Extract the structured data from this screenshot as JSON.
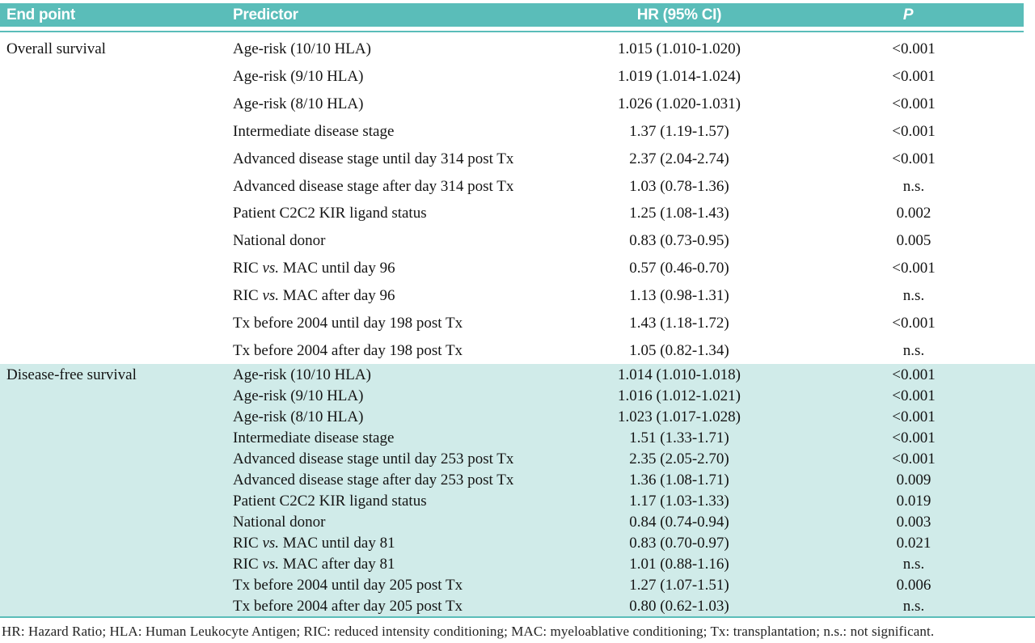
{
  "colors": {
    "header_teal": "#5abdb9",
    "section_teal": "#d0ebe9",
    "text": "#141414"
  },
  "table": {
    "columns": {
      "end_point": "End point",
      "predictor": "Predictor",
      "hr": "HR (95% CI)",
      "p": "P"
    },
    "sections": [
      {
        "end_point": "Overall survival",
        "rows": [
          {
            "predictor": "Age-risk (10/10 HLA)",
            "hr": "1.015 (1.010-1.020)",
            "p": "<0.001"
          },
          {
            "predictor": "Age-risk (9/10 HLA)",
            "hr": "1.019 (1.014-1.024)",
            "p": "<0.001"
          },
          {
            "predictor": "Age-risk (8/10 HLA)",
            "hr": "1.026 (1.020-1.031)",
            "p": "<0.001"
          },
          {
            "predictor": "Intermediate disease stage",
            "hr": "1.37 (1.19-1.57)",
            "p": "<0.001"
          },
          {
            "predictor": "Advanced disease stage until day 314 post Tx",
            "hr": "2.37 (2.04-2.74)",
            "p": "<0.001"
          },
          {
            "predictor": "Advanced disease stage after day 314 post Tx",
            "hr": "1.03 (0.78-1.36)",
            "p": "n.s."
          },
          {
            "predictor": "Patient C2C2 KIR ligand status",
            "hr": "1.25 (1.08-1.43)",
            "p": "0.002"
          },
          {
            "predictor": "National donor",
            "hr": "0.83 (0.73-0.95)",
            "p": "0.005"
          },
          {
            "predictor": "RIC vs. MAC until day 96",
            "hr": "0.57 (0.46-0.70)",
            "p": "<0.001"
          },
          {
            "predictor": "RIC vs. MAC after day 96",
            "hr": "1.13 (0.98-1.31)",
            "p": "n.s."
          },
          {
            "predictor": "Tx before 2004 until day 198 post Tx",
            "hr": "1.43 (1.18-1.72)",
            "p": "<0.001"
          },
          {
            "predictor": "Tx before 2004 after day 198 post Tx",
            "hr": "1.05 (0.82-1.34)",
            "p": "n.s."
          }
        ]
      },
      {
        "end_point": "Disease-free survival",
        "rows": [
          {
            "predictor": "Age-risk (10/10 HLA)",
            "hr": "1.014 (1.010-1.018)",
            "p": "<0.001"
          },
          {
            "predictor": "Age-risk (9/10 HLA)",
            "hr": "1.016 (1.012-1.021)",
            "p": "<0.001"
          },
          {
            "predictor": "Age-risk (8/10 HLA)",
            "hr": "1.023 (1.017-1.028)",
            "p": "<0.001"
          },
          {
            "predictor": "Intermediate disease stage",
            "hr": "1.51 (1.33-1.71)",
            "p": "<0.001"
          },
          {
            "predictor": "Advanced disease stage until day 253 post Tx",
            "hr": "2.35 (2.05-2.70)",
            "p": "<0.001"
          },
          {
            "predictor": "Advanced disease stage after day 253 post Tx",
            "hr": "1.36 (1.08-1.71)",
            "p": "0.009"
          },
          {
            "predictor": "Patient C2C2 KIR ligand status",
            "hr": "1.17 (1.03-1.33)",
            "p": "0.019"
          },
          {
            "predictor": "National donor",
            "hr": "0.84 (0.74-0.94)",
            "p": "0.003"
          },
          {
            "predictor": "RIC vs. MAC until day 81",
            "hr": "0.83 (0.70-0.97)",
            "p": "0.021"
          },
          {
            "predictor": "RIC vs. MAC after day 81",
            "hr": "1.01 (0.88-1.16)",
            "p": "n.s."
          },
          {
            "predictor": "Tx before 2004 until day 205 post Tx",
            "hr": "1.27 (1.07-1.51)",
            "p": "0.006"
          },
          {
            "predictor": "Tx before 2004 after day 205 post Tx",
            "hr": "0.80 (0.62-1.03)",
            "p": "n.s."
          }
        ]
      }
    ],
    "footnote": "HR: Hazard Ratio; HLA: Human Leukocyte Antigen; RIC: reduced intensity conditioning; MAC: myeloablative conditioning; Tx: transplantation; n.s.: not significant."
  }
}
